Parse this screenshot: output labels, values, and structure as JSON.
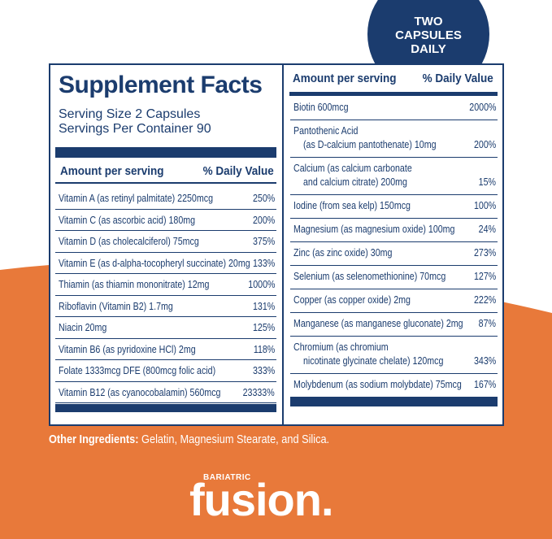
{
  "badge": {
    "lines": [
      "TWO",
      "CAPSULES",
      "DAILY"
    ]
  },
  "facts": {
    "title": "Supplement Facts",
    "serving_size": "Serving Size 2 Capsules",
    "servings_per_container": "Servings Per Container 90",
    "amount_header": "Amount per serving",
    "dv_header": "% Daily Value",
    "left_rows": [
      {
        "name": [
          "Vitamin A (as retinyl palmitate) 2250mcg"
        ],
        "dv": "250%"
      },
      {
        "name": [
          "Vitamin C (as ascorbic acid) 180mg"
        ],
        "dv": "200%"
      },
      {
        "name": [
          "Vitamin D (as cholecalciferol) 75mcg"
        ],
        "dv": "375%"
      },
      {
        "name": [
          "Vitamin E (as d-alpha-tocopheryl succinate) 20mg"
        ],
        "dv": "133%"
      },
      {
        "name": [
          "Thiamin (as thiamin mononitrate) 12mg"
        ],
        "dv": "1000%"
      },
      {
        "name": [
          "Riboflavin (Vitamin B2) 1.7mg"
        ],
        "dv": "131%"
      },
      {
        "name": [
          "Niacin 20mg"
        ],
        "dv": "125%"
      },
      {
        "name": [
          "Vitamin B6 (as pyridoxine HCl) 2mg"
        ],
        "dv": "118%"
      },
      {
        "name": [
          "Folate 1333mcg DFE (800mcg folic acid)"
        ],
        "dv": "333%"
      },
      {
        "name": [
          "Vitamin B12 (as cyanocobalamin) 560mcg"
        ],
        "dv": "23333%"
      }
    ],
    "right_rows": [
      {
        "name": [
          "Biotin 600mcg"
        ],
        "dv": "2000%"
      },
      {
        "name": [
          "Pantothenic Acid",
          "(as D-calcium pantothenate) 10mg"
        ],
        "dv": "200%"
      },
      {
        "name": [
          "Calcium (as calcium carbonate",
          "and calcium citrate) 200mg"
        ],
        "dv": "15%"
      },
      {
        "name": [
          "Iodine (from sea kelp) 150mcg"
        ],
        "dv": "100%"
      },
      {
        "name": [
          "Magnesium (as magnesium oxide) 100mg"
        ],
        "dv": "24%"
      },
      {
        "name": [
          "Zinc (as zinc oxide) 30mg"
        ],
        "dv": "273%"
      },
      {
        "name": [
          "Selenium (as selenomethionine) 70mcg"
        ],
        "dv": "127%"
      },
      {
        "name": [
          "Copper (as copper oxide) 2mg"
        ],
        "dv": "222%"
      },
      {
        "name": [
          "Manganese (as manganese gluconate) 2mg"
        ],
        "dv": "87%"
      },
      {
        "name": [
          "Chromium (as chromium",
          "nicotinate glycinate chelate) 120mcg"
        ],
        "dv": "343%"
      },
      {
        "name": [
          "Molybdenum (as sodium molybdate) 75mcg"
        ],
        "dv": "167%"
      }
    ]
  },
  "other_ingredients": {
    "label": "Other Ingredients:",
    "text": "Gelatin, Magnesium Stearate, and Silica."
  },
  "brand": {
    "small": "BARIATRIC",
    "name": "fusion."
  }
}
